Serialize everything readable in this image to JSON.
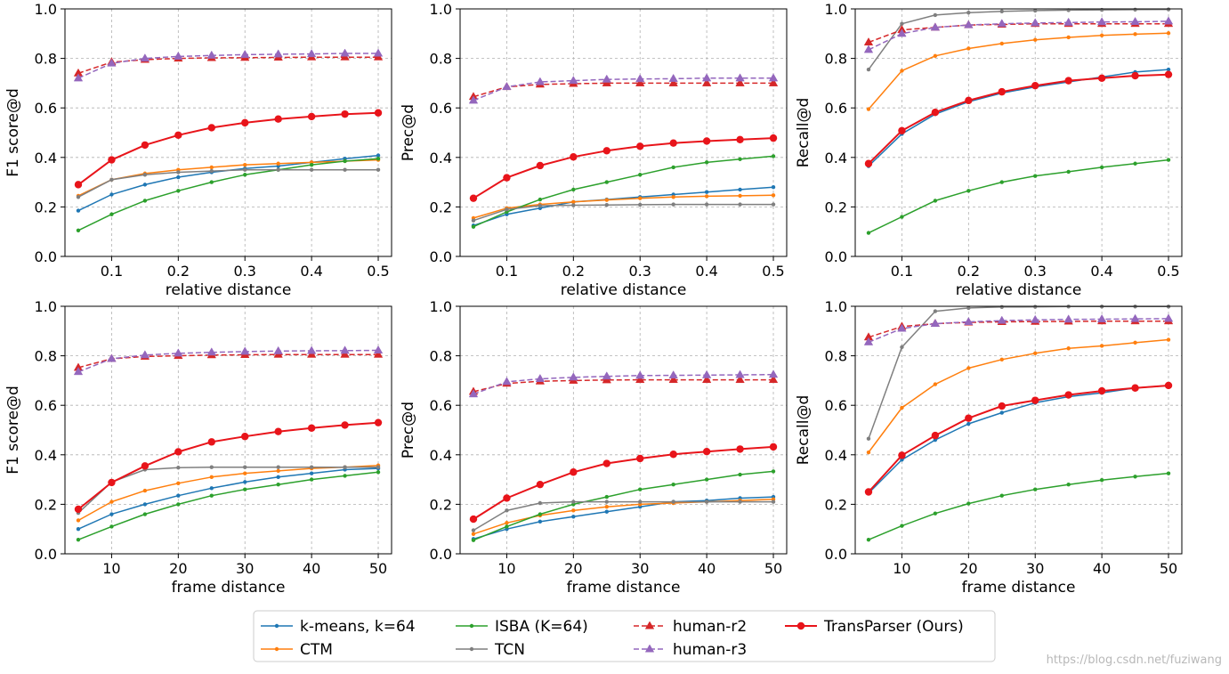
{
  "colors": {
    "kmeans": "#1f77b4",
    "ctm": "#ff7f0e",
    "isba": "#2ca02c",
    "tcn": "#7f7f7f",
    "human_r2": "#d62728",
    "human_r3": "#9467bd",
    "transparser": "#e8141a"
  },
  "legend": [
    {
      "key": "kmeans",
      "label": "k-means, k=64",
      "marker": "dot",
      "dash": false
    },
    {
      "key": "ctm",
      "label": "CTM",
      "marker": "dot",
      "dash": false
    },
    {
      "key": "isba",
      "label": "ISBA (K=64)",
      "marker": "dot",
      "dash": false
    },
    {
      "key": "tcn",
      "label": "TCN",
      "marker": "dot",
      "dash": false
    },
    {
      "key": "human_r2",
      "label": "human-r2",
      "marker": "triangle",
      "dash": true
    },
    {
      "key": "human_r3",
      "label": "human-r3",
      "marker": "triangle",
      "dash": true
    },
    {
      "key": "transparser",
      "label": "TransParser (Ours)",
      "marker": "circle",
      "dash": false
    }
  ],
  "watermark": "https://blog.csdn.net/fuziwang",
  "chart_data": [
    {
      "type": "line",
      "ylabel": "F1 score@d",
      "xlabel": "relative distance",
      "ylim": [
        0,
        1.0
      ],
      "xlim": [
        0.03,
        0.52
      ],
      "xticks": [
        0.1,
        0.2,
        0.3,
        0.4,
        0.5
      ],
      "xtick_labels": [
        "0.1",
        "0.2",
        "0.3",
        "0.4",
        "0.5"
      ],
      "yticks": [
        0.0,
        0.2,
        0.4,
        0.6,
        0.8,
        1.0
      ],
      "ytick_labels": [
        "0.0",
        "0.2",
        "0.4",
        "0.6",
        "0.8",
        "1.0"
      ],
      "x": [
        0.05,
        0.1,
        0.15,
        0.2,
        0.25,
        0.3,
        0.35,
        0.4,
        0.45,
        0.5
      ],
      "series": [
        {
          "key": "kmeans",
          "values": [
            0.185,
            0.25,
            0.29,
            0.32,
            0.34,
            0.355,
            0.365,
            0.38,
            0.395,
            0.408
          ]
        },
        {
          "key": "ctm",
          "values": [
            0.245,
            0.31,
            0.335,
            0.35,
            0.36,
            0.37,
            0.375,
            0.38,
            0.385,
            0.39
          ]
        },
        {
          "key": "isba",
          "values": [
            0.105,
            0.17,
            0.225,
            0.265,
            0.3,
            0.33,
            0.35,
            0.37,
            0.385,
            0.395
          ]
        },
        {
          "key": "tcn",
          "values": [
            0.24,
            0.31,
            0.33,
            0.34,
            0.345,
            0.35,
            0.35,
            0.35,
            0.35,
            0.35
          ]
        },
        {
          "key": "human_r2",
          "values": [
            0.74,
            0.785,
            0.795,
            0.8,
            0.802,
            0.803,
            0.804,
            0.805,
            0.805,
            0.805
          ]
        },
        {
          "key": "human_r3",
          "values": [
            0.72,
            0.78,
            0.8,
            0.808,
            0.812,
            0.815,
            0.817,
            0.818,
            0.82,
            0.82
          ]
        },
        {
          "key": "transparser",
          "values": [
            0.29,
            0.39,
            0.45,
            0.49,
            0.52,
            0.54,
            0.555,
            0.565,
            0.575,
            0.58
          ]
        }
      ]
    },
    {
      "type": "line",
      "ylabel": "Prec@d",
      "xlabel": "relative distance",
      "ylim": [
        0,
        1.0
      ],
      "xlim": [
        0.03,
        0.52
      ],
      "xticks": [
        0.1,
        0.2,
        0.3,
        0.4,
        0.5
      ],
      "xtick_labels": [
        "0.1",
        "0.2",
        "0.3",
        "0.4",
        "0.5"
      ],
      "yticks": [
        0.0,
        0.2,
        0.4,
        0.6,
        0.8,
        1.0
      ],
      "ytick_labels": [
        "0.0",
        "0.2",
        "0.4",
        "0.6",
        "0.8",
        "1.0"
      ],
      "x": [
        0.05,
        0.1,
        0.15,
        0.2,
        0.25,
        0.3,
        0.35,
        0.4,
        0.45,
        0.5
      ],
      "series": [
        {
          "key": "kmeans",
          "values": [
            0.125,
            0.17,
            0.195,
            0.22,
            0.23,
            0.24,
            0.25,
            0.26,
            0.27,
            0.28
          ]
        },
        {
          "key": "ctm",
          "values": [
            0.155,
            0.195,
            0.21,
            0.22,
            0.228,
            0.235,
            0.24,
            0.243,
            0.245,
            0.247
          ]
        },
        {
          "key": "isba",
          "values": [
            0.12,
            0.18,
            0.23,
            0.27,
            0.3,
            0.33,
            0.36,
            0.38,
            0.393,
            0.405
          ]
        },
        {
          "key": "tcn",
          "values": [
            0.145,
            0.19,
            0.205,
            0.207,
            0.208,
            0.209,
            0.21,
            0.21,
            0.21,
            0.21
          ]
        },
        {
          "key": "human_r2",
          "values": [
            0.645,
            0.685,
            0.695,
            0.698,
            0.7,
            0.7,
            0.7,
            0.7,
            0.7,
            0.7
          ]
        },
        {
          "key": "human_r3",
          "values": [
            0.63,
            0.685,
            0.705,
            0.71,
            0.715,
            0.717,
            0.718,
            0.72,
            0.72,
            0.72
          ]
        },
        {
          "key": "transparser",
          "values": [
            0.235,
            0.318,
            0.367,
            0.402,
            0.427,
            0.445,
            0.458,
            0.466,
            0.472,
            0.478
          ]
        }
      ]
    },
    {
      "type": "line",
      "ylabel": "Recall@d",
      "xlabel": "relative distance",
      "ylim": [
        0,
        1.0
      ],
      "xlim": [
        0.03,
        0.52
      ],
      "xticks": [
        0.1,
        0.2,
        0.3,
        0.4,
        0.5
      ],
      "xtick_labels": [
        "0.1",
        "0.2",
        "0.3",
        "0.4",
        "0.5"
      ],
      "yticks": [
        0.0,
        0.2,
        0.4,
        0.6,
        0.8,
        1.0
      ],
      "ytick_labels": [
        "0.0",
        "0.2",
        "0.4",
        "0.6",
        "0.8",
        "1.0"
      ],
      "x": [
        0.05,
        0.1,
        0.15,
        0.2,
        0.25,
        0.3,
        0.35,
        0.4,
        0.45,
        0.5
      ],
      "series": [
        {
          "key": "kmeans",
          "values": [
            0.365,
            0.495,
            0.575,
            0.625,
            0.66,
            0.685,
            0.705,
            0.725,
            0.745,
            0.755
          ]
        },
        {
          "key": "ctm",
          "values": [
            0.595,
            0.75,
            0.81,
            0.84,
            0.86,
            0.875,
            0.885,
            0.893,
            0.898,
            0.902
          ]
        },
        {
          "key": "isba",
          "values": [
            0.095,
            0.16,
            0.225,
            0.265,
            0.3,
            0.325,
            0.342,
            0.36,
            0.375,
            0.39
          ]
        },
        {
          "key": "tcn",
          "values": [
            0.755,
            0.94,
            0.975,
            0.985,
            0.99,
            0.993,
            0.995,
            0.996,
            0.997,
            0.998
          ]
        },
        {
          "key": "human_r2",
          "values": [
            0.865,
            0.915,
            0.925,
            0.935,
            0.937,
            0.94,
            0.94,
            0.94,
            0.94,
            0.94
          ]
        },
        {
          "key": "human_r3",
          "values": [
            0.835,
            0.9,
            0.925,
            0.935,
            0.94,
            0.943,
            0.945,
            0.947,
            0.948,
            0.95
          ]
        },
        {
          "key": "transparser",
          "values": [
            0.375,
            0.508,
            0.582,
            0.63,
            0.665,
            0.69,
            0.71,
            0.72,
            0.73,
            0.735
          ]
        }
      ]
    },
    {
      "type": "line",
      "ylabel": "F1 score@d",
      "xlabel": "frame distance",
      "ylim": [
        0,
        1.0
      ],
      "xlim": [
        3,
        52
      ],
      "xticks": [
        10,
        20,
        30,
        40,
        50
      ],
      "xtick_labels": [
        "10",
        "20",
        "30",
        "40",
        "50"
      ],
      "yticks": [
        0.0,
        0.2,
        0.4,
        0.6,
        0.8,
        1.0
      ],
      "ytick_labels": [
        "0.0",
        "0.2",
        "0.4",
        "0.6",
        "0.8",
        "1.0"
      ],
      "x": [
        5,
        10,
        15,
        20,
        25,
        30,
        35,
        40,
        45,
        50
      ],
      "series": [
        {
          "key": "kmeans",
          "values": [
            0.1,
            0.16,
            0.2,
            0.235,
            0.265,
            0.29,
            0.31,
            0.325,
            0.34,
            0.345
          ]
        },
        {
          "key": "ctm",
          "values": [
            0.135,
            0.21,
            0.255,
            0.285,
            0.31,
            0.325,
            0.335,
            0.345,
            0.35,
            0.357
          ]
        },
        {
          "key": "isba",
          "values": [
            0.057,
            0.11,
            0.16,
            0.2,
            0.235,
            0.26,
            0.28,
            0.3,
            0.315,
            0.33
          ]
        },
        {
          "key": "tcn",
          "values": [
            0.165,
            0.29,
            0.34,
            0.348,
            0.35,
            0.35,
            0.35,
            0.35,
            0.35,
            0.35
          ]
        },
        {
          "key": "human_r2",
          "values": [
            0.752,
            0.788,
            0.797,
            0.8,
            0.803,
            0.804,
            0.805,
            0.805,
            0.805,
            0.805
          ]
        },
        {
          "key": "human_r3",
          "values": [
            0.735,
            0.788,
            0.803,
            0.81,
            0.814,
            0.817,
            0.819,
            0.82,
            0.821,
            0.822
          ]
        },
        {
          "key": "transparser",
          "values": [
            0.18,
            0.288,
            0.355,
            0.412,
            0.452,
            0.474,
            0.494,
            0.508,
            0.52,
            0.53
          ]
        }
      ]
    },
    {
      "type": "line",
      "ylabel": "Prec@d",
      "xlabel": "frame distance",
      "ylim": [
        0,
        1.0
      ],
      "xlim": [
        3,
        52
      ],
      "xticks": [
        10,
        20,
        30,
        40,
        50
      ],
      "xtick_labels": [
        "10",
        "20",
        "30",
        "40",
        "50"
      ],
      "yticks": [
        0.0,
        0.2,
        0.4,
        0.6,
        0.8,
        1.0
      ],
      "ytick_labels": [
        "0.0",
        "0.2",
        "0.4",
        "0.6",
        "0.8",
        "1.0"
      ],
      "x": [
        5,
        10,
        15,
        20,
        25,
        30,
        35,
        40,
        45,
        50
      ],
      "series": [
        {
          "key": "kmeans",
          "values": [
            0.06,
            0.1,
            0.13,
            0.15,
            0.17,
            0.19,
            0.21,
            0.215,
            0.225,
            0.23
          ]
        },
        {
          "key": "ctm",
          "values": [
            0.08,
            0.125,
            0.155,
            0.175,
            0.19,
            0.2,
            0.205,
            0.21,
            0.215,
            0.22
          ]
        },
        {
          "key": "isba",
          "values": [
            0.055,
            0.11,
            0.16,
            0.2,
            0.23,
            0.26,
            0.28,
            0.3,
            0.32,
            0.333
          ]
        },
        {
          "key": "tcn",
          "values": [
            0.095,
            0.175,
            0.205,
            0.21,
            0.21,
            0.21,
            0.21,
            0.21,
            0.21,
            0.21
          ]
        },
        {
          "key": "human_r2",
          "values": [
            0.655,
            0.688,
            0.697,
            0.7,
            0.702,
            0.703,
            0.703,
            0.703,
            0.703,
            0.703
          ]
        },
        {
          "key": "human_r3",
          "values": [
            0.645,
            0.695,
            0.707,
            0.713,
            0.717,
            0.72,
            0.721,
            0.722,
            0.723,
            0.724
          ]
        },
        {
          "key": "transparser",
          "values": [
            0.14,
            0.225,
            0.28,
            0.33,
            0.365,
            0.385,
            0.402,
            0.413,
            0.423,
            0.432
          ]
        }
      ]
    },
    {
      "type": "line",
      "ylabel": "Recall@d",
      "xlabel": "frame distance",
      "ylim": [
        0,
        1.0
      ],
      "xlim": [
        3,
        52
      ],
      "xticks": [
        10,
        20,
        30,
        40,
        50
      ],
      "xtick_labels": [
        "10",
        "20",
        "30",
        "40",
        "50"
      ],
      "yticks": [
        0.0,
        0.2,
        0.4,
        0.6,
        0.8,
        1.0
      ],
      "ytick_labels": [
        "0.0",
        "0.2",
        "0.4",
        "0.6",
        "0.8",
        "1.0"
      ],
      "x": [
        5,
        10,
        15,
        20,
        25,
        30,
        35,
        40,
        45,
        50
      ],
      "series": [
        {
          "key": "kmeans",
          "values": [
            0.245,
            0.38,
            0.46,
            0.525,
            0.57,
            0.61,
            0.635,
            0.65,
            0.67,
            0.68
          ]
        },
        {
          "key": "ctm",
          "values": [
            0.41,
            0.59,
            0.685,
            0.75,
            0.785,
            0.81,
            0.83,
            0.84,
            0.853,
            0.865
          ]
        },
        {
          "key": "isba",
          "values": [
            0.057,
            0.113,
            0.163,
            0.203,
            0.235,
            0.26,
            0.28,
            0.298,
            0.312,
            0.325
          ]
        },
        {
          "key": "tcn",
          "values": [
            0.465,
            0.835,
            0.98,
            0.993,
            0.997,
            0.998,
            0.999,
            0.999,
            0.999,
            0.999
          ]
        },
        {
          "key": "human_r2",
          "values": [
            0.875,
            0.918,
            0.93,
            0.935,
            0.937,
            0.938,
            0.939,
            0.94,
            0.94,
            0.94
          ]
        },
        {
          "key": "human_r3",
          "values": [
            0.855,
            0.91,
            0.93,
            0.937,
            0.942,
            0.945,
            0.947,
            0.948,
            0.949,
            0.95
          ]
        },
        {
          "key": "transparser",
          "values": [
            0.25,
            0.398,
            0.478,
            0.548,
            0.597,
            0.62,
            0.642,
            0.658,
            0.67,
            0.68
          ]
        }
      ]
    }
  ]
}
